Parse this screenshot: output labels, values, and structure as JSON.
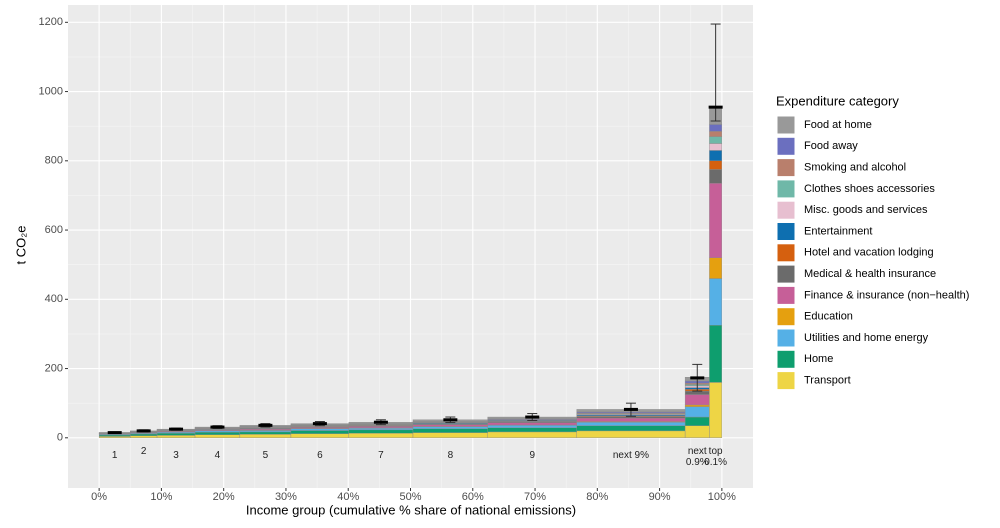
{
  "chart_data": {
    "type": "variable-width-stacked-bar",
    "xlabel": "Income group (cumulative % share of national emissions)",
    "ylabel": "t CO₂e",
    "legend_title": "Expenditure category",
    "legend_position": "right",
    "grid": true,
    "categories": [
      "1",
      "2",
      "3",
      "4",
      "5",
      "6",
      "7",
      "8",
      "9",
      "next 9%",
      "next 0.9%",
      "top 0.1%"
    ],
    "bins": [
      0,
      5,
      9.3,
      15.4,
      22.6,
      30.8,
      40.1,
      50.4,
      62.4,
      76.7,
      94.1,
      98,
      100
    ],
    "series": [
      {
        "name": "Transport",
        "color": "#eed545",
        "values": [
          4,
          6,
          7,
          9,
          10,
          12,
          13,
          15,
          17,
          20,
          35,
          160
        ]
      },
      {
        "name": "Home",
        "color": "#0e9e6e",
        "values": [
          4,
          5,
          6,
          7,
          7,
          9,
          10,
          11,
          12,
          15,
          25,
          165
        ]
      },
      {
        "name": "Utilities and home energy",
        "color": "#55b0e6",
        "values": [
          2,
          2,
          3,
          4,
          4,
          5,
          5,
          6,
          7,
          10,
          30,
          135
        ]
      },
      {
        "name": "Education",
        "color": "#e5a00f",
        "values": [
          0.5,
          0.5,
          0.5,
          1,
          1,
          1,
          1,
          1,
          1,
          2,
          5,
          60
        ]
      },
      {
        "name": "Finance & insurance (non−health)",
        "color": "#c65f98",
        "values": [
          1,
          1.5,
          2,
          2,
          3,
          3,
          4,
          5,
          7,
          10,
          30,
          215
        ]
      },
      {
        "name": "Medical & health insurance",
        "color": "#6b6b6b",
        "values": [
          0.5,
          1,
          1,
          1,
          2,
          2,
          2,
          2,
          3,
          4,
          10,
          40
        ]
      },
      {
        "name": "Hotel and vacation lodging",
        "color": "#d5600f",
        "values": [
          0.5,
          0.5,
          0.5,
          1,
          1,
          1,
          1,
          1,
          1,
          2,
          5,
          25
        ]
      },
      {
        "name": "Entertainment",
        "color": "#0e6fb0",
        "values": [
          0.5,
          0.5,
          1,
          1,
          1,
          1,
          1,
          2,
          2,
          3,
          5,
          30
        ]
      },
      {
        "name": "Misc. goods and services",
        "color": "#e7bfd0",
        "values": [
          0.5,
          0.5,
          1,
          1,
          1,
          1,
          1,
          1,
          1,
          2,
          5,
          20
        ]
      },
      {
        "name": "Clothes shoes accessories",
        "color": "#6fb8a8",
        "values": [
          0.5,
          0.5,
          0.5,
          1,
          1,
          1,
          1,
          1,
          1,
          2,
          4,
          20
        ]
      },
      {
        "name": "Smoking and alcohol",
        "color": "#b97f6c",
        "values": [
          0.5,
          0.5,
          0.5,
          0.5,
          1,
          1,
          1,
          1,
          1,
          2,
          4,
          15
        ]
      },
      {
        "name": "Food away",
        "color": "#6b6fbf",
        "values": [
          0.5,
          0.5,
          0.5,
          0.5,
          1,
          1,
          1,
          1,
          2,
          3,
          6,
          20
        ]
      },
      {
        "name": "Food at home",
        "color": "#999999",
        "values": [
          0.5,
          1,
          1.5,
          2,
          3,
          3,
          4,
          5,
          5,
          7,
          11,
          50
        ]
      }
    ],
    "error_center": [
      15,
      20,
      25,
      31,
      36,
      41,
      45,
      52,
      60,
      82,
      173,
      955
    ],
    "error_low": [
      13,
      17,
      22,
      27,
      31,
      35,
      38,
      44,
      50,
      62,
      135,
      915
    ],
    "error_high": [
      17,
      23,
      28,
      35,
      41,
      47,
      52,
      60,
      70,
      100,
      212,
      1195
    ],
    "xlim": [
      -5,
      105
    ],
    "ylim": [
      -145,
      1250
    ],
    "xticks": [
      {
        "value": 0,
        "label": "0%"
      },
      {
        "value": 10,
        "label": "10%"
      },
      {
        "value": 20,
        "label": "20%"
      },
      {
        "value": 30,
        "label": "30%"
      },
      {
        "value": 40,
        "label": "40%"
      },
      {
        "value": 50,
        "label": "50%"
      },
      {
        "value": 60,
        "label": "60%"
      },
      {
        "value": 70,
        "label": "70%"
      },
      {
        "value": 80,
        "label": "80%"
      },
      {
        "value": 90,
        "label": "90%"
      },
      {
        "value": 100,
        "label": "100%"
      }
    ],
    "yticks": [
      0,
      200,
      400,
      600,
      800,
      1000,
      1200
    ]
  }
}
